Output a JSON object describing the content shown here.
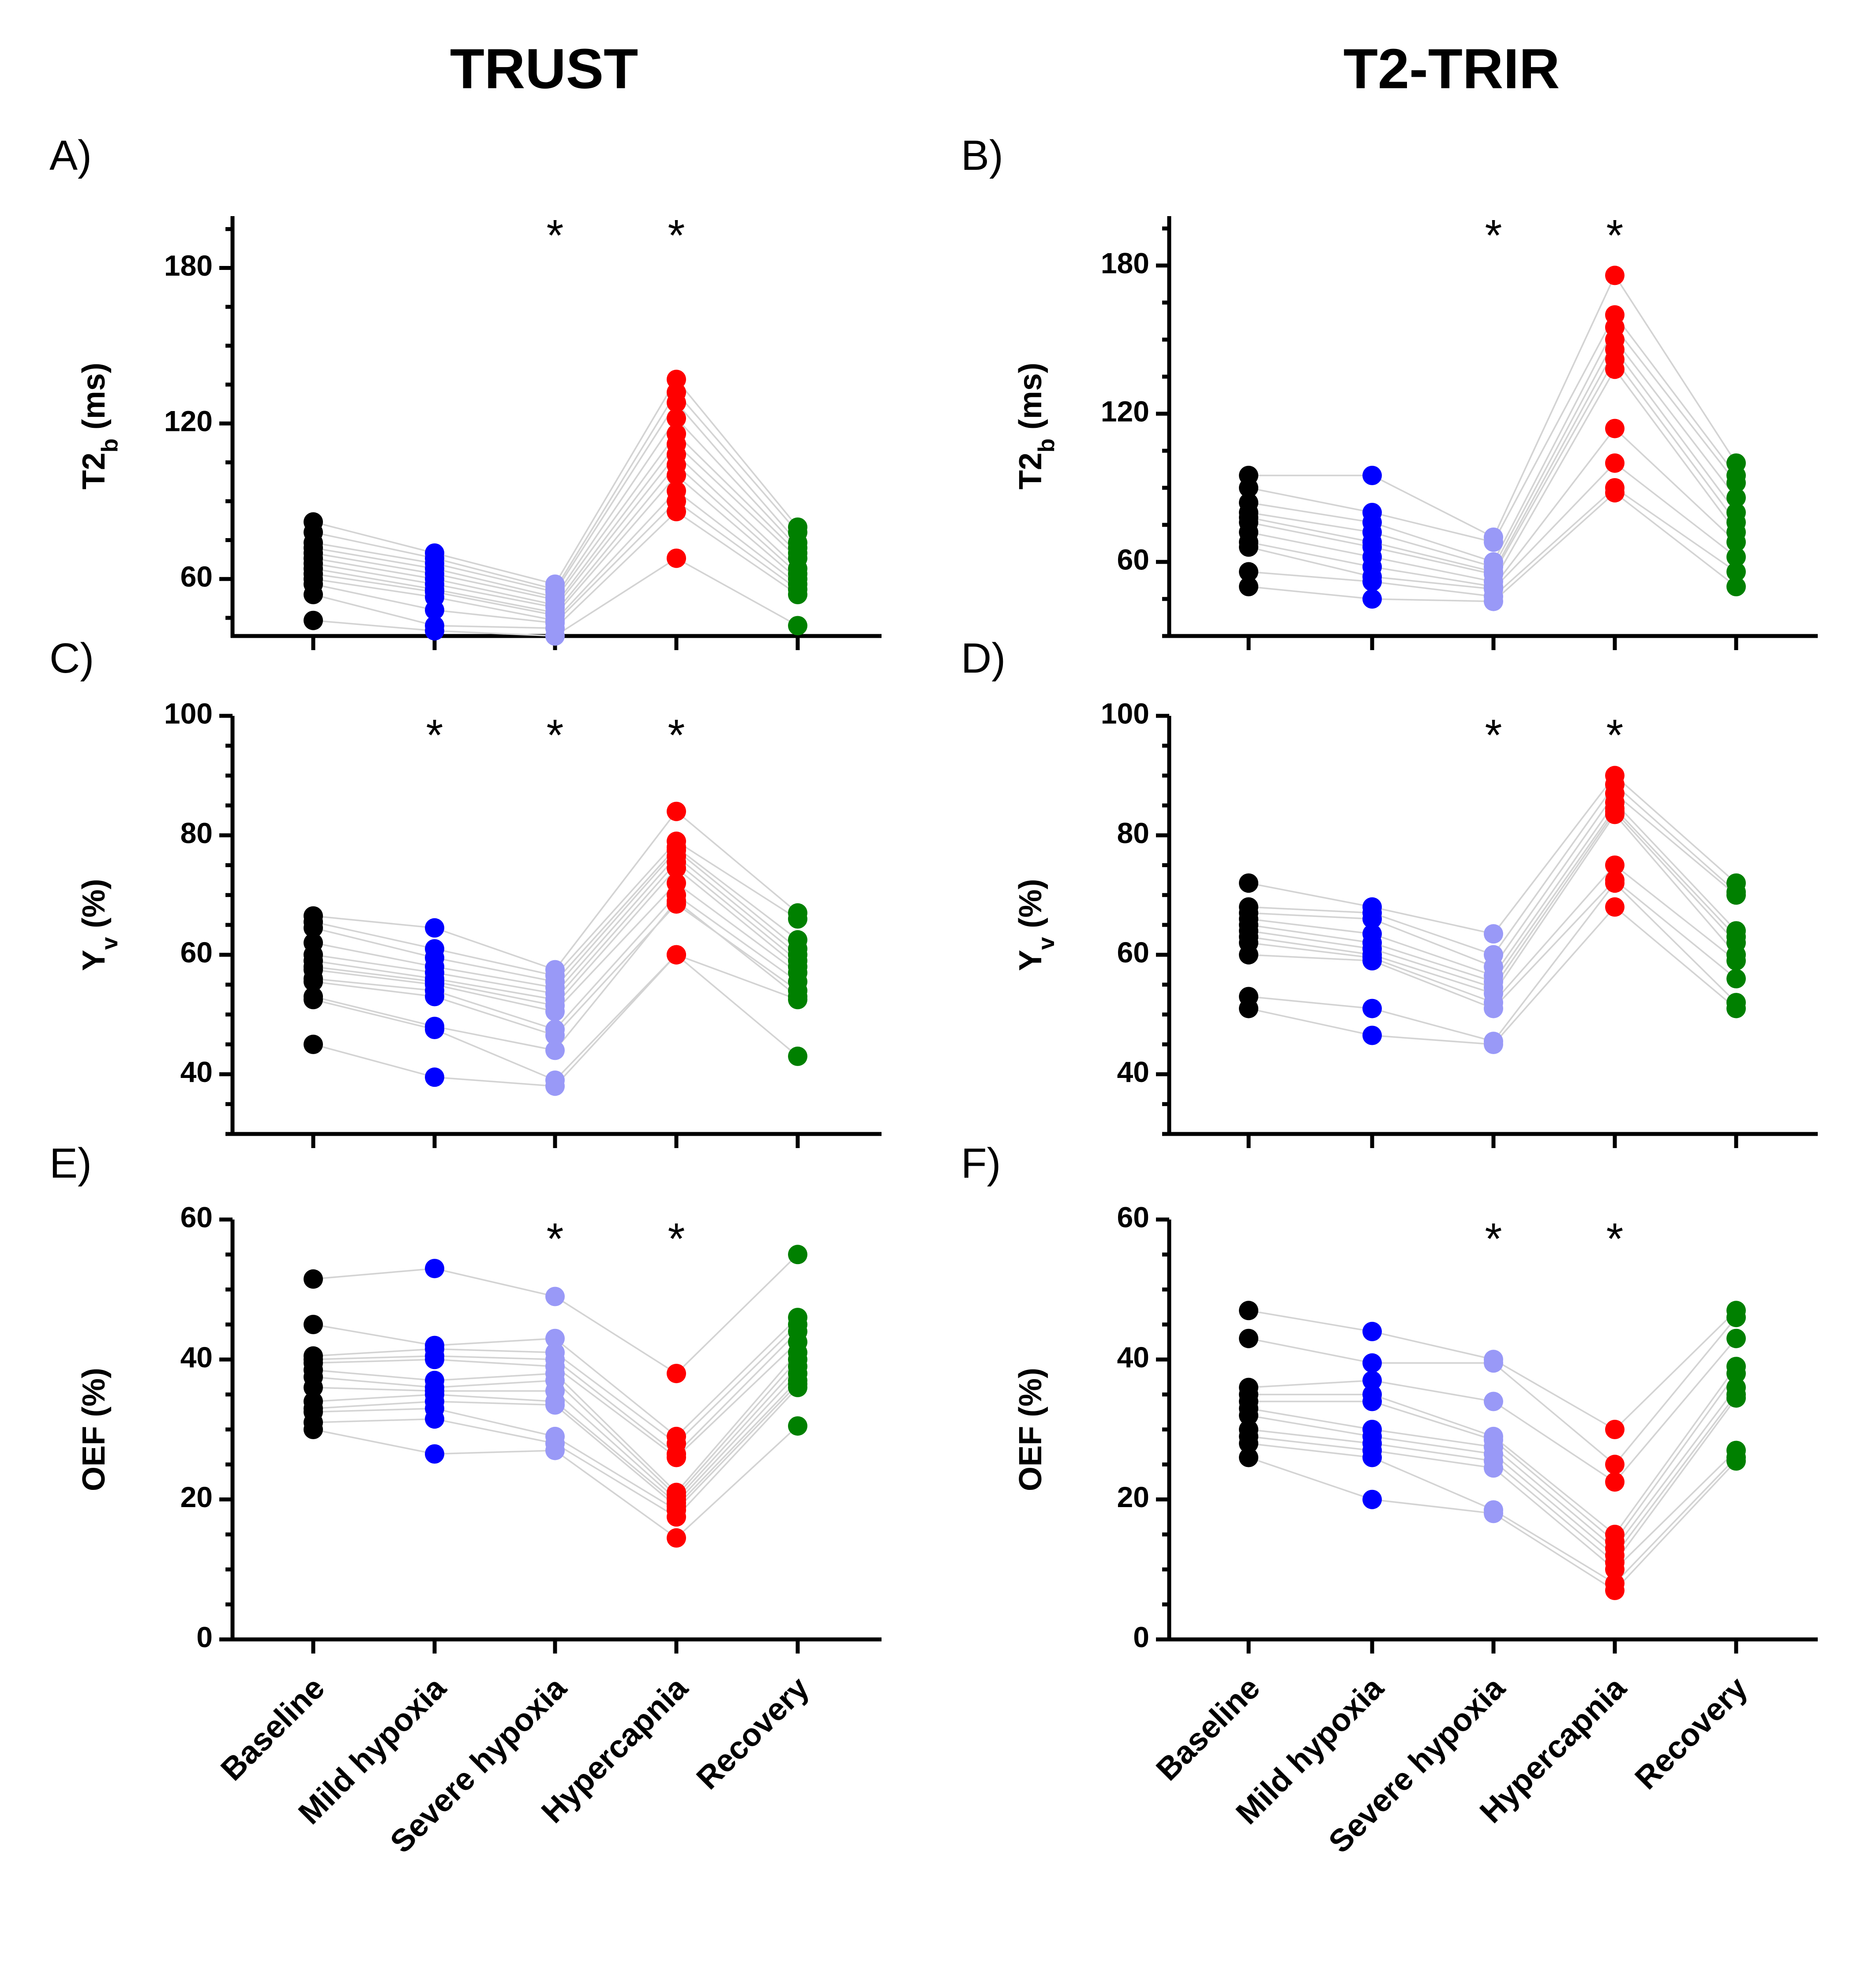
{
  "columns": [
    {
      "title": "TRUST"
    },
    {
      "title": "T2-TRIR"
    }
  ],
  "category_labels": [
    "Baseline",
    "Mild hypoxia",
    "Severe hypoxia",
    "Hypercapnia",
    "Recovery"
  ],
  "colors": {
    "Baseline": "#000000",
    "Mild hypoxia": "#0000ff",
    "Severe hypoxia": "#9999f7",
    "Hypercapnia": "#ff0000",
    "Recovery": "#008000",
    "connector": "#d3d3d3"
  },
  "significance_marker": "*",
  "chart_data": [
    {
      "panel": "A)",
      "type": "scatter",
      "method": "TRUST",
      "ylabel": "T2b (ms)",
      "ylabel_main": "T2",
      "ylabel_sub": "b",
      "ylabel_rest": " (ms)",
      "ylim": [
        38,
        200
      ],
      "yticks": [
        60,
        120,
        180
      ],
      "minor_step": 15,
      "categories": [
        "Baseline",
        "Mild hypoxia",
        "Severe hypoxia",
        "Hypercapnia",
        "Recovery"
      ],
      "significant": [
        false,
        false,
        true,
        true,
        false
      ],
      "subjects": [
        [
          82,
          70,
          58,
          137,
          80
        ],
        [
          78,
          68,
          56,
          132,
          78
        ],
        [
          74,
          66,
          55,
          128,
          74
        ],
        [
          72,
          64,
          53,
          122,
          72
        ],
        [
          70,
          62,
          52,
          116,
          70
        ],
        [
          68,
          60,
          50,
          112,
          68
        ],
        [
          66,
          58,
          49,
          108,
          64
        ],
        [
          64,
          56,
          47,
          104,
          62
        ],
        [
          62,
          55,
          46,
          100,
          60
        ],
        [
          60,
          53,
          44,
          94,
          58
        ],
        [
          58,
          48,
          43,
          90,
          56
        ],
        [
          54,
          42,
          41,
          86,
          54
        ],
        [
          44,
          40,
          38,
          68,
          42
        ]
      ]
    },
    {
      "panel": "B)",
      "type": "scatter",
      "method": "T2-TRIR",
      "ylabel": "T2b (ms)",
      "ylabel_main": "T2",
      "ylabel_sub": "b",
      "ylabel_rest": " (ms)",
      "ylim": [
        30,
        200
      ],
      "yticks": [
        60,
        120,
        180
      ],
      "minor_step": 15,
      "categories": [
        "Baseline",
        "Mild hypoxia",
        "Severe hypoxia",
        "Hypercapnia",
        "Recovery"
      ],
      "significant": [
        false,
        false,
        true,
        true,
        false
      ],
      "subjects": [
        [
          95,
          95,
          70,
          176,
          100
        ],
        [
          90,
          80,
          68,
          160,
          95
        ],
        [
          84,
          76,
          60,
          155,
          92
        ],
        [
          80,
          72,
          58,
          150,
          86
        ],
        [
          78,
          68,
          56,
          146,
          80
        ],
        [
          76,
          66,
          55,
          142,
          76
        ],
        [
          72,
          62,
          52,
          138,
          72
        ],
        [
          68,
          58,
          50,
          114,
          68
        ],
        [
          66,
          54,
          49,
          100,
          62
        ],
        [
          56,
          52,
          46,
          90,
          56
        ],
        [
          50,
          45,
          44,
          88,
          50
        ]
      ]
    },
    {
      "panel": "C)",
      "type": "scatter",
      "method": "TRUST",
      "ylabel": "Yv (%)",
      "ylabel_main": "Y",
      "ylabel_sub": "v",
      "ylabel_rest": " (%)",
      "ylim": [
        30,
        100
      ],
      "yticks": [
        40,
        60,
        80,
        100
      ],
      "minor_step": 5,
      "categories": [
        "Baseline",
        "Mild hypoxia",
        "Severe hypoxia",
        "Hypercapnia",
        "Recovery"
      ],
      "significant": [
        false,
        true,
        true,
        true,
        false
      ],
      "subjects": [
        [
          66.5,
          64.5,
          57.5,
          84,
          67
        ],
        [
          65.5,
          61,
          56.5,
          79,
          66
        ],
        [
          64.5,
          59.5,
          55.5,
          78,
          62.5
        ],
        [
          62,
          58,
          54.5,
          77.5,
          61
        ],
        [
          60,
          57,
          53.5,
          76.5,
          60
        ],
        [
          59,
          56,
          52.5,
          75.5,
          59
        ],
        [
          58,
          55.5,
          51.5,
          74.5,
          58
        ],
        [
          57.5,
          55,
          50.5,
          72,
          57
        ],
        [
          56,
          54,
          47.5,
          70,
          55.5
        ],
        [
          55.5,
          53,
          46.5,
          68.5,
          54
        ],
        [
          53,
          48,
          44,
          69,
          53
        ],
        [
          52.5,
          47.5,
          39,
          60,
          52.5
        ],
        [
          45,
          39.5,
          38,
          60,
          43
        ]
      ]
    },
    {
      "panel": "D)",
      "type": "scatter",
      "method": "T2-TRIR",
      "ylabel": "Yv (%)",
      "ylabel_main": "Y",
      "ylabel_sub": "v",
      "ylabel_rest": " (%)",
      "ylim": [
        30,
        100
      ],
      "yticks": [
        40,
        60,
        80,
        100
      ],
      "minor_step": 5,
      "categories": [
        "Baseline",
        "Mild hypoxia",
        "Severe hypoxia",
        "Hypercapnia",
        "Recovery"
      ],
      "significant": [
        false,
        false,
        true,
        true,
        false
      ],
      "subjects": [
        [
          72,
          68,
          63.5,
          90,
          72
        ],
        [
          68,
          67,
          60,
          88.5,
          70.5
        ],
        [
          67,
          66,
          58,
          87,
          70
        ],
        [
          66,
          63.5,
          56.5,
          85.5,
          64
        ],
        [
          65,
          62,
          55.5,
          84.5,
          63
        ],
        [
          64,
          61,
          54.5,
          84,
          62
        ],
        [
          63,
          60,
          53.5,
          83.5,
          60
        ],
        [
          62,
          59.5,
          52,
          75,
          59
        ],
        [
          60,
          59,
          51,
          72.5,
          56
        ],
        [
          53,
          51,
          45.5,
          72,
          52
        ],
        [
          51,
          46.5,
          45,
          68,
          51
        ]
      ]
    },
    {
      "panel": "E)",
      "type": "scatter",
      "method": "TRUST",
      "ylabel": "OEF (%)",
      "ylabel_main": "OEF (%)",
      "ylabel_sub": "",
      "ylabel_rest": "",
      "ylim": [
        0,
        60
      ],
      "yticks": [
        0,
        20,
        40,
        60
      ],
      "minor_step": 5,
      "categories": [
        "Baseline",
        "Mild hypoxia",
        "Severe hypoxia",
        "Hypercapnia",
        "Recovery"
      ],
      "significant": [
        false,
        false,
        true,
        true,
        false
      ],
      "subjects": [
        [
          51.5,
          53,
          49,
          38,
          55
        ],
        [
          45,
          42,
          43,
          29,
          46
        ],
        [
          40.5,
          41.5,
          41,
          28,
          45
        ],
        [
          40,
          40.5,
          40,
          26.5,
          44
        ],
        [
          39.5,
          40,
          39,
          26,
          42.5
        ],
        [
          38.5,
          37,
          38,
          21,
          41
        ],
        [
          37.5,
          36,
          37,
          20.5,
          40
        ],
        [
          36,
          35.5,
          35.5,
          20,
          39
        ],
        [
          34,
          35,
          34,
          19.5,
          38
        ],
        [
          33,
          34,
          33.5,
          19,
          37
        ],
        [
          32.5,
          33,
          29,
          18.5,
          36.5
        ],
        [
          31,
          31.5,
          28,
          17.5,
          36
        ],
        [
          30,
          26.5,
          27,
          14.5,
          30.5
        ]
      ]
    },
    {
      "panel": "F)",
      "type": "scatter",
      "method": "T2-TRIR",
      "ylabel": "OEF (%)",
      "ylabel_main": "OEF (%)",
      "ylabel_sub": "",
      "ylabel_rest": "",
      "ylim": [
        0,
        60
      ],
      "yticks": [
        0,
        20,
        40,
        60
      ],
      "minor_step": 5,
      "categories": [
        "Baseline",
        "Mild hypoxia",
        "Severe hypoxia",
        "Hypercapnia",
        "Recovery"
      ],
      "significant": [
        false,
        false,
        true,
        true,
        false
      ],
      "subjects": [
        [
          47,
          44,
          40,
          30,
          47
        ],
        [
          43,
          39.5,
          39.5,
          25,
          46
        ],
        [
          36,
          37,
          34,
          22.5,
          43
        ],
        [
          35,
          35,
          29,
          15,
          39
        ],
        [
          34,
          34,
          28.5,
          14,
          38
        ],
        [
          33,
          30,
          27.5,
          13,
          36
        ],
        [
          32,
          29,
          26.5,
          12,
          35
        ],
        [
          30,
          28,
          25.5,
          11,
          34.5
        ],
        [
          29,
          27,
          24.5,
          10,
          27
        ],
        [
          28,
          26,
          18.5,
          8,
          26
        ],
        [
          26,
          20,
          18,
          7,
          25.5
        ]
      ]
    }
  ]
}
